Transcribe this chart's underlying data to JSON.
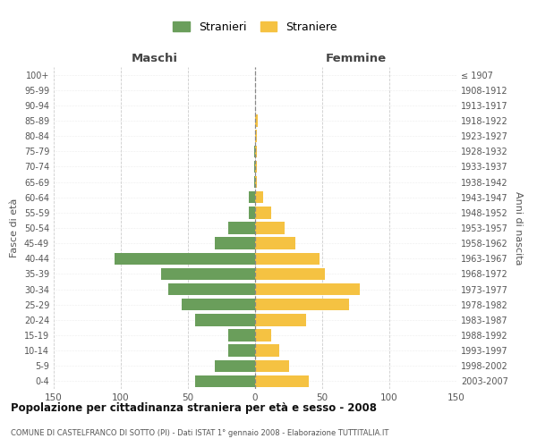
{
  "age_groups": [
    "0-4",
    "5-9",
    "10-14",
    "15-19",
    "20-24",
    "25-29",
    "30-34",
    "35-39",
    "40-44",
    "45-49",
    "50-54",
    "55-59",
    "60-64",
    "65-69",
    "70-74",
    "75-79",
    "80-84",
    "85-89",
    "90-94",
    "95-99",
    "100+"
  ],
  "birth_years": [
    "2003-2007",
    "1998-2002",
    "1993-1997",
    "1988-1992",
    "1983-1987",
    "1978-1982",
    "1973-1977",
    "1968-1972",
    "1963-1967",
    "1958-1962",
    "1953-1957",
    "1948-1952",
    "1943-1947",
    "1938-1942",
    "1933-1937",
    "1928-1932",
    "1923-1927",
    "1918-1922",
    "1913-1917",
    "1908-1912",
    "≤ 1907"
  ],
  "maschi": [
    45,
    30,
    20,
    20,
    45,
    55,
    65,
    70,
    105,
    30,
    20,
    5,
    5,
    1,
    1,
    1,
    0,
    0,
    0,
    0,
    0
  ],
  "femmine": [
    40,
    25,
    18,
    12,
    38,
    70,
    78,
    52,
    48,
    30,
    22,
    12,
    6,
    1,
    1,
    1,
    1,
    2,
    0,
    0,
    0
  ],
  "maschi_color": "#6a9e5b",
  "femmine_color": "#f5c242",
  "background_color": "#ffffff",
  "grid_color": "#cccccc",
  "center_line_color": "#888888",
  "title": "Popolazione per cittadinanza straniera per età e sesso - 2008",
  "subtitle": "COMUNE DI CASTELFRANCO DI SOTTO (PI) - Dati ISTAT 1° gennaio 2008 - Elaborazione TUTTITALIA.IT",
  "xlabel_left": "Maschi",
  "xlabel_right": "Femmine",
  "ylabel_left": "Fasce di età",
  "ylabel_right": "Anni di nascita",
  "legend_stranieri": "Stranieri",
  "legend_straniere": "Straniere",
  "xlim": 150
}
